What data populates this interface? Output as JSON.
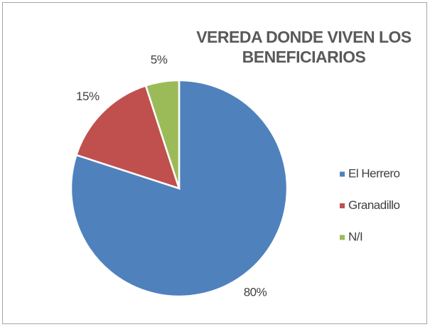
{
  "chart_data": {
    "type": "pie",
    "title": "VEREDA DONDE VIVEN LOS BENEFICIARIOS",
    "categories": [
      "El Herrero",
      "Granadillo",
      "N/I"
    ],
    "values": [
      80,
      15,
      5
    ],
    "value_labels": [
      "80%",
      "15%",
      "5%"
    ],
    "colors": [
      "#4f81bd",
      "#c0504d",
      "#9bbb59"
    ],
    "legend": "right"
  }
}
